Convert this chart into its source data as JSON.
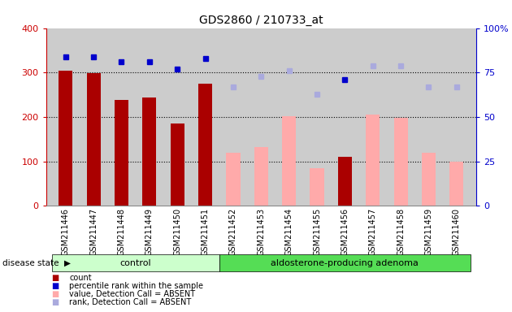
{
  "title": "GDS2860 / 210733_at",
  "samples": [
    "GSM211446",
    "GSM211447",
    "GSM211448",
    "GSM211449",
    "GSM211450",
    "GSM211451",
    "GSM211452",
    "GSM211453",
    "GSM211454",
    "GSM211455",
    "GSM211456",
    "GSM211457",
    "GSM211458",
    "GSM211459",
    "GSM211460"
  ],
  "detection_call": [
    "P",
    "P",
    "P",
    "P",
    "P",
    "P",
    "A",
    "A",
    "A",
    "A",
    "P",
    "A",
    "A",
    "A",
    "A"
  ],
  "count_values": [
    305,
    298,
    238,
    243,
    185,
    275,
    null,
    null,
    null,
    null,
    110,
    null,
    null,
    null,
    null
  ],
  "absent_values": [
    null,
    null,
    null,
    null,
    null,
    null,
    120,
    133,
    202,
    85,
    null,
    205,
    198,
    120,
    100
  ],
  "rank_present": [
    84,
    84,
    81,
    81,
    77,
    83,
    null,
    null,
    null,
    null,
    71,
    null,
    null,
    null,
    null
  ],
  "rank_absent": [
    null,
    null,
    null,
    null,
    null,
    null,
    67,
    73,
    76,
    63,
    null,
    79,
    79,
    67,
    67
  ],
  "ylim": [
    0,
    400
  ],
  "y2lim": [
    0,
    100
  ],
  "yticks": [
    0,
    100,
    200,
    300,
    400
  ],
  "y2ticks": [
    0,
    25,
    50,
    75,
    100
  ],
  "control_range": [
    0,
    5
  ],
  "adenoma_range": [
    6,
    14
  ],
  "color_present_bar": "#aa0000",
  "color_absent_bar": "#ffaaaa",
  "color_rank_present": "#0000cc",
  "color_rank_absent": "#aaaadd",
  "color_control_bg": "#ccffcc",
  "color_adenoma_bg": "#55dd55",
  "color_axis_left": "#cc0000",
  "color_axis_right": "#0000cc",
  "color_plot_bg": "#cccccc",
  "bar_width": 0.5,
  "legend_items": [
    {
      "color": "#aa0000",
      "label": "count"
    },
    {
      "color": "#0000cc",
      "label": "percentile rank within the sample"
    },
    {
      "color": "#ffaaaa",
      "label": "value, Detection Call = ABSENT"
    },
    {
      "color": "#aaaadd",
      "label": "rank, Detection Call = ABSENT"
    }
  ]
}
